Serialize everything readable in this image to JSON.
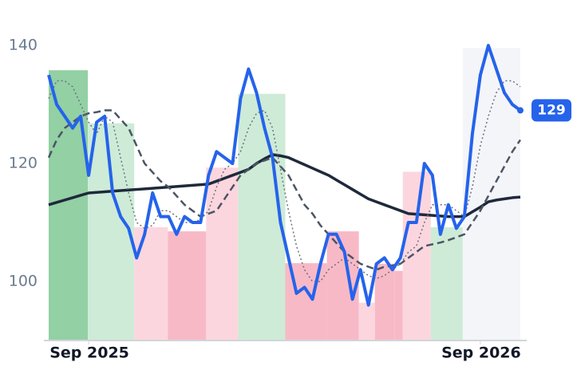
{
  "chart_data": {
    "type": "line",
    "x": [
      0,
      1,
      2,
      3,
      4,
      5,
      6,
      7,
      8,
      9,
      10,
      11,
      12,
      13,
      14,
      15,
      16,
      17,
      18,
      19,
      20,
      21,
      22,
      23,
      24,
      25,
      26,
      27,
      28,
      29,
      30,
      31,
      32,
      33,
      34,
      35,
      36,
      37,
      38,
      39,
      40,
      41,
      42,
      43,
      44,
      45,
      46,
      47,
      48,
      49,
      50,
      51,
      52,
      53,
      54,
      55,
      56,
      57,
      58,
      59
    ],
    "xlim": [
      0,
      59
    ],
    "xticks": [
      {
        "value": 5,
        "label": "Sep 2025"
      },
      {
        "value": 54,
        "label": "Sep 2026"
      }
    ],
    "ylim": [
      90,
      142
    ],
    "yticks": [
      100,
      120,
      140
    ],
    "regions": [
      {
        "x0": 0,
        "x1": 4.9,
        "value": 135.8,
        "color": "#93d0a4"
      },
      {
        "x0": 4.9,
        "x1": 10.7,
        "value": 126.8,
        "color": "#cdebd6"
      },
      {
        "x0": 10.7,
        "x1": 14.9,
        "value": 109.2,
        "color": "#fcd6de"
      },
      {
        "x0": 14.9,
        "x1": 19.7,
        "value": 108.5,
        "color": "#f8b9c6"
      },
      {
        "x0": 19.7,
        "x1": 23.7,
        "value": 119.3,
        "color": "#fcd6de"
      },
      {
        "x0": 23.7,
        "x1": 29.6,
        "value": 131.8,
        "color": "#cdebd6"
      },
      {
        "x0": 29.6,
        "x1": 34.8,
        "value": 103.1,
        "color": "#f8b9c6"
      },
      {
        "x0": 34.8,
        "x1": 38.8,
        "value": 108.5,
        "color": "#f8b9c6"
      },
      {
        "x0": 38.8,
        "x1": 40.8,
        "value": 96.4,
        "color": "#fcd6de"
      },
      {
        "x0": 40.8,
        "x1": 43.3,
        "value": 103,
        "color": "#f8b9c6"
      },
      {
        "x0": 43.3,
        "x1": 44.3,
        "value": 101.8,
        "color": "#f8b9c6"
      },
      {
        "x0": 44.3,
        "x1": 47.8,
        "value": 118.6,
        "color": "#fcd6de"
      },
      {
        "x0": 47.8,
        "x1": 51.8,
        "value": 109.2,
        "color": "#cdebd6"
      },
      {
        "x0": 51.8,
        "x1": 59,
        "value": 139.6,
        "color": "#f4f5f9"
      }
    ],
    "series": [
      {
        "style": "solid",
        "width": 4,
        "color": "#2563eb",
        "values": [
          135,
          130,
          128,
          126,
          128,
          118,
          127,
          128,
          115,
          111,
          109,
          104,
          108,
          115,
          111,
          111,
          108,
          111,
          110,
          110,
          118,
          122,
          121,
          120,
          131,
          136,
          132,
          126,
          121,
          110,
          104,
          98,
          99,
          97,
          103,
          108,
          108,
          105,
          97,
          102,
          96,
          103,
          104,
          102,
          104,
          110,
          110,
          120,
          118,
          108,
          113,
          109,
          111,
          125,
          135,
          140,
          136,
          132,
          130,
          129
        ]
      },
      {
        "style": "dotted",
        "width": 1.5,
        "color": "#6b7280",
        "values": [
          131,
          134,
          134,
          133,
          130,
          127,
          125,
          128,
          127,
          121,
          115,
          110,
          109,
          109.5,
          112,
          112,
          111,
          110,
          110,
          110.5,
          112,
          116,
          119,
          120,
          122,
          126,
          128.5,
          129,
          126,
          119,
          112,
          106,
          102,
          100,
          100,
          102,
          103,
          104,
          103,
          102,
          101,
          100.5,
          101,
          102,
          103,
          105,
          106,
          110,
          113,
          113,
          113,
          112,
          111,
          116,
          123,
          128,
          132,
          134,
          134,
          133
        ]
      },
      {
        "style": "dashed",
        "width": 2.5,
        "color": "#4b5563",
        "values": [
          121,
          124,
          126,
          127,
          128,
          128.5,
          128.7,
          129,
          129,
          127.5,
          126,
          123,
          120,
          118.5,
          117,
          116,
          114.5,
          113,
          112,
          111,
          111.5,
          112,
          114,
          116,
          118,
          119,
          120,
          120.5,
          121,
          119.5,
          118,
          115.5,
          113,
          111.5,
          109.5,
          108,
          106.5,
          105,
          104,
          103,
          102.5,
          102,
          102.5,
          102.7,
          103,
          104,
          105,
          106,
          106.3,
          106.6,
          107,
          107.5,
          108,
          110,
          112,
          114.5,
          117,
          119.5,
          122,
          124
        ]
      },
      {
        "style": "solid",
        "width": 3.5,
        "color": "#1e293b",
        "values": [
          113,
          113.4,
          113.8,
          114.2,
          114.6,
          115,
          115.1,
          115.2,
          115.3,
          115.4,
          115.5,
          115.6,
          115.7,
          115.8,
          115.9,
          116,
          116.1,
          116.2,
          116.3,
          116.4,
          116.5,
          117,
          117.5,
          118,
          118.5,
          119,
          120,
          120.8,
          121.5,
          121.3,
          121,
          120.4,
          119.8,
          119.2,
          118.6,
          118,
          117.2,
          116.4,
          115.6,
          114.8,
          114,
          113.5,
          113,
          112.5,
          112,
          111.5,
          111.4,
          111.3,
          111.2,
          111.1,
          111,
          111,
          111,
          111.8,
          112.6,
          113.5,
          113.8,
          114,
          114.2,
          114.3
        ]
      }
    ]
  }
}
